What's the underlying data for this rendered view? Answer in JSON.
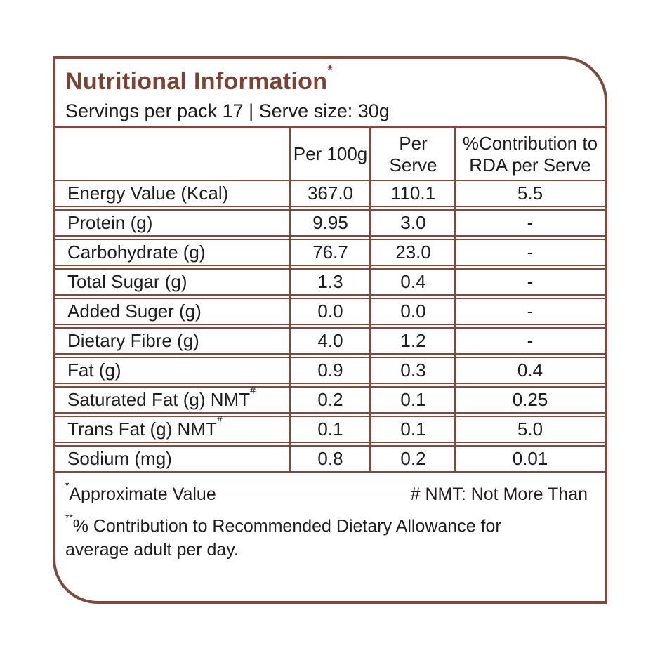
{
  "colors": {
    "accent": "#7a4335",
    "line": "#7d4a3e",
    "text": "#1d1d1d"
  },
  "card": {
    "title": "Nutritional Information",
    "title_superscript": "*",
    "subtitle": "Servings per pack 17 | Serve size: 30g"
  },
  "table": {
    "columns": {
      "label": "",
      "per_100g": "Per 100g",
      "per_serve": "Per Serve",
      "rda": "%Contribution to RDA per Serve"
    },
    "rows": [
      {
        "label": "Energy Value (Kcal)",
        "per_100g": "367.0",
        "per_serve": "110.1",
        "rda": "5.5"
      },
      {
        "label": "Protein (g)",
        "per_100g": "9.95",
        "per_serve": "3.0",
        "rda": "-"
      },
      {
        "label": "Carbohydrate (g)",
        "per_100g": "76.7",
        "per_serve": "23.0",
        "rda": "-"
      },
      {
        "label": "Total Sugar (g)",
        "per_100g": "1.3",
        "per_serve": "0.4",
        "rda": "-"
      },
      {
        "label": "Added Suger (g)",
        "per_100g": "0.0",
        "per_serve": "0.0",
        "rda": "-"
      },
      {
        "label": "Dietary Fibre (g)",
        "per_100g": "4.0",
        "per_serve": "1.2",
        "rda": "-"
      },
      {
        "label": "Fat (g)",
        "per_100g": "0.9",
        "per_serve": "0.3",
        "rda": "0.4"
      },
      {
        "label": "Saturated Fat (g) NMT",
        "label_sup": "#",
        "per_100g": "0.2",
        "per_serve": "0.1",
        "rda": "0.25"
      },
      {
        "label": "Trans Fat (g) NMT",
        "label_sup": "#",
        "per_100g": "0.1",
        "per_serve": "0.1",
        "rda": "5.0"
      },
      {
        "label": "Sodium (mg)",
        "per_100g": "0.8",
        "per_serve": "0.2",
        "rda": "0.01"
      }
    ]
  },
  "footnotes": {
    "approx_superscript": "*",
    "approx": "Approximate Value",
    "nmt": "# NMT: Not More Than",
    "rda_superscript": "**",
    "rda": "% Contribution to Recommended Dietary Allowance for average adult per day."
  }
}
